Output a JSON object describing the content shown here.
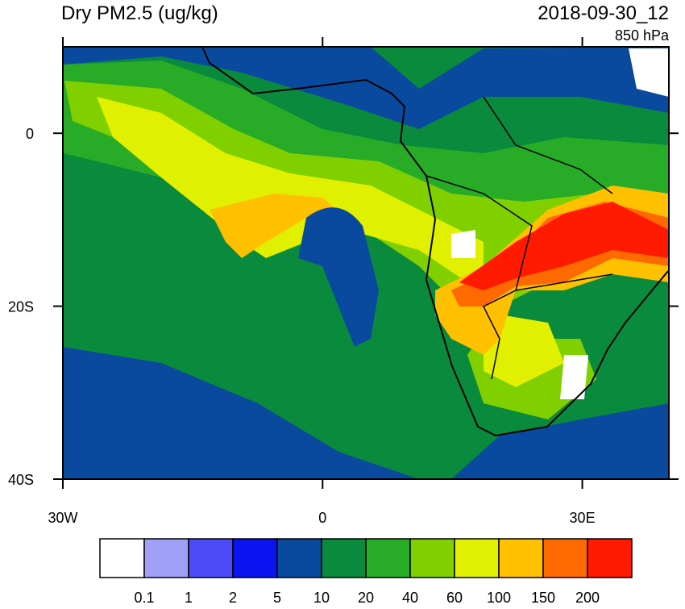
{
  "title": "Dry PM2.5 (ug/kg)",
  "date": "2018-09-30_12",
  "level": "850 hPa",
  "map": {
    "xlim": [
      -30,
      40
    ],
    "ylim": [
      -40,
      10
    ],
    "xticks": [
      {
        "value": -30,
        "label": "30W"
      },
      0,
      {
        "value": 30,
        "label": "30E"
      }
    ],
    "yticks": [
      0,
      {
        "value": -20,
        "label": "20S"
      },
      {
        "value": -40,
        "label": "40S"
      }
    ]
  },
  "colorbar": {
    "levels": [
      0.1,
      1,
      2,
      5,
      10,
      20,
      40,
      60,
      100,
      150,
      200
    ],
    "colors": [
      "#ffffff",
      "#a0a0f8",
      "#4a4af8",
      "#0a14f0",
      "#0a4a9e",
      "#0a8a3c",
      "#28ac28",
      "#80d000",
      "#e0f000",
      "#ffc000",
      "#ff6a00",
      "#ff1a00"
    ]
  }
}
